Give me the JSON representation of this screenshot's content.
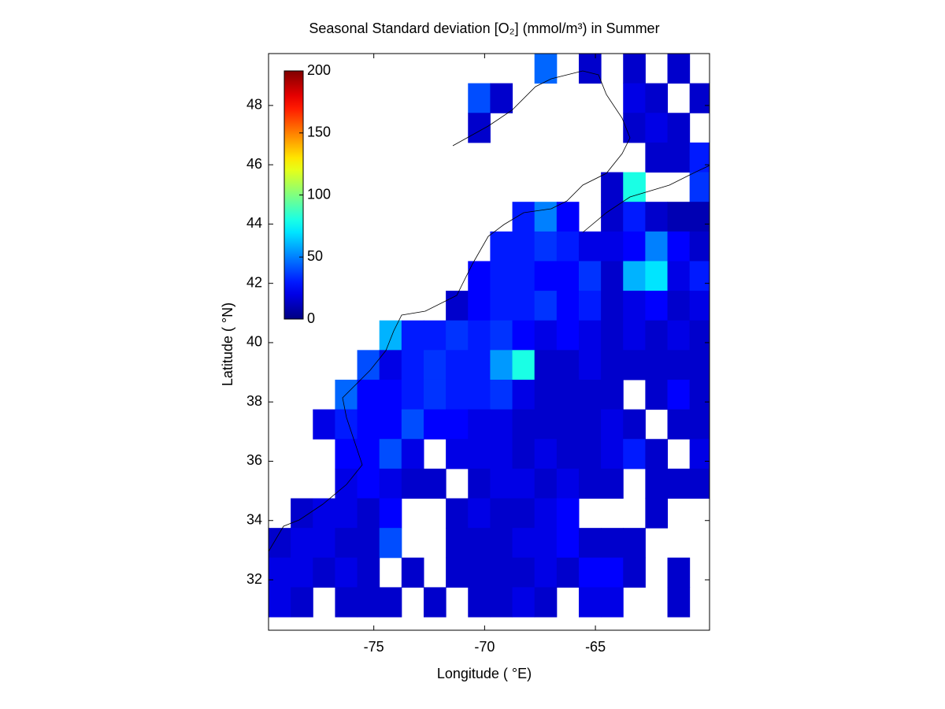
{
  "chart_data": {
    "type": "heatmap",
    "title": "Seasonal Standard deviation [O₂] (mmol/m³) in  Summer",
    "xlabel": "Longitude ( °E)",
    "ylabel": "Latitude ( °N)",
    "xlim": [
      -79.75,
      -59.85
    ],
    "ylim": [
      30.3,
      49.75
    ],
    "xticks": [
      -75,
      -70,
      -65
    ],
    "yticks": [
      32,
      34,
      36,
      38,
      40,
      42,
      44,
      46,
      48
    ],
    "colormap": "jet",
    "clim": [
      0,
      200
    ],
    "cticks": [
      0,
      50,
      100,
      150,
      200
    ],
    "x": [
      -79.25,
      -78.25,
      -77.25,
      -76.25,
      -75.25,
      -74.25,
      -73.25,
      -72.25,
      -71.25,
      -70.25,
      -69.25,
      -68.25,
      -67.25,
      -66.25,
      -65.25,
      -64.25,
      -63.25,
      -62.25,
      -61.25,
      -60.25
    ],
    "y": [
      49.25,
      48.25,
      47.25,
      46.25,
      45.25,
      44.25,
      43.25,
      42.25,
      41.25,
      40.25,
      39.25,
      38.25,
      37.25,
      36.25,
      35.25,
      34.25,
      33.25,
      32.25,
      31.25
    ],
    "z": [
      [
        null,
        null,
        null,
        null,
        null,
        null,
        null,
        null,
        null,
        null,
        null,
        null,
        45,
        null,
        15,
        null,
        15,
        null,
        15,
        null
      ],
      [
        null,
        null,
        null,
        null,
        null,
        null,
        null,
        null,
        null,
        40,
        15,
        null,
        null,
        null,
        null,
        null,
        20,
        15,
        null,
        15
      ],
      [
        null,
        null,
        null,
        null,
        null,
        null,
        null,
        null,
        null,
        15,
        null,
        null,
        null,
        null,
        null,
        null,
        15,
        20,
        15,
        null
      ],
      [
        null,
        null,
        null,
        null,
        null,
        null,
        null,
        null,
        null,
        null,
        null,
        null,
        null,
        null,
        null,
        null,
        null,
        15,
        15,
        30
      ],
      [
        null,
        null,
        null,
        null,
        null,
        null,
        null,
        null,
        null,
        null,
        null,
        null,
        null,
        null,
        null,
        15,
        80,
        null,
        null,
        35
      ],
      [
        null,
        null,
        null,
        null,
        null,
        null,
        null,
        null,
        null,
        null,
        null,
        30,
        50,
        25,
        null,
        15,
        30,
        15,
        10,
        10
      ],
      [
        null,
        null,
        null,
        null,
        null,
        null,
        null,
        null,
        null,
        null,
        30,
        30,
        35,
        30,
        20,
        20,
        25,
        50,
        25,
        15
      ],
      [
        null,
        null,
        null,
        null,
        null,
        null,
        null,
        null,
        null,
        25,
        30,
        30,
        25,
        25,
        35,
        15,
        60,
        70,
        20,
        30
      ],
      [
        null,
        null,
        null,
        null,
        null,
        null,
        null,
        null,
        15,
        25,
        30,
        30,
        35,
        25,
        30,
        15,
        20,
        25,
        15,
        20
      ],
      [
        null,
        null,
        null,
        null,
        null,
        60,
        30,
        30,
        35,
        30,
        35,
        25,
        20,
        25,
        20,
        15,
        20,
        15,
        20,
        15
      ],
      [
        null,
        null,
        null,
        null,
        40,
        20,
        30,
        35,
        30,
        30,
        55,
        80,
        15,
        15,
        20,
        15,
        15,
        15,
        15,
        15
      ],
      [
        null,
        null,
        null,
        45,
        25,
        25,
        30,
        35,
        30,
        30,
        35,
        20,
        15,
        15,
        15,
        15,
        null,
        15,
        25,
        15
      ],
      [
        null,
        null,
        20,
        30,
        25,
        25,
        40,
        25,
        25,
        20,
        20,
        15,
        15,
        15,
        15,
        20,
        15,
        null,
        15,
        15
      ],
      [
        null,
        null,
        null,
        25,
        25,
        40,
        20,
        null,
        20,
        20,
        20,
        15,
        20,
        15,
        15,
        20,
        30,
        15,
        null,
        20
      ],
      [
        null,
        null,
        null,
        20,
        25,
        20,
        15,
        15,
        null,
        15,
        20,
        20,
        15,
        20,
        15,
        15,
        null,
        15,
        15,
        15
      ],
      [
        null,
        15,
        20,
        20,
        15,
        25,
        null,
        null,
        15,
        20,
        15,
        15,
        20,
        25,
        null,
        null,
        null,
        15,
        null,
        null
      ],
      [
        15,
        20,
        20,
        15,
        15,
        40,
        null,
        null,
        15,
        15,
        15,
        20,
        20,
        25,
        15,
        15,
        15,
        null,
        null,
        null
      ],
      [
        20,
        20,
        15,
        20,
        15,
        null,
        15,
        null,
        15,
        15,
        15,
        15,
        20,
        15,
        25,
        25,
        15,
        null,
        15,
        null
      ],
      [
        20,
        15,
        null,
        15,
        15,
        15,
        null,
        15,
        null,
        15,
        15,
        20,
        15,
        null,
        20,
        20,
        null,
        null,
        15,
        null
      ]
    ]
  }
}
